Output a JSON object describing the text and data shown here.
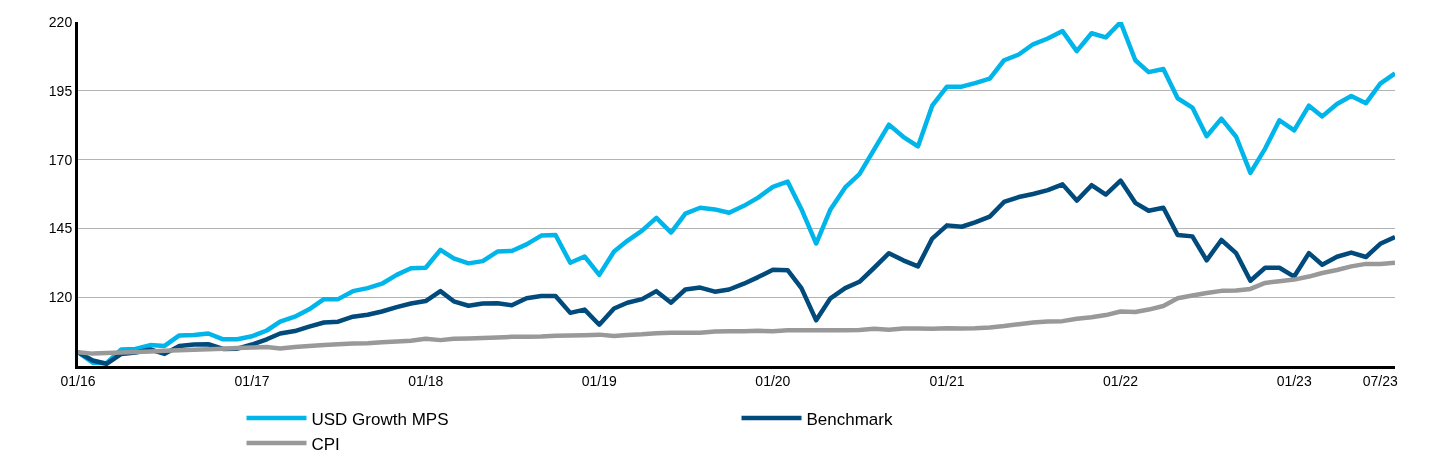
{
  "chart_data": {
    "type": "line",
    "x": [
      "2016-01",
      "2016-02",
      "2016-03",
      "2016-04",
      "2016-05",
      "2016-06",
      "2016-07",
      "2016-08",
      "2016-09",
      "2016-10",
      "2016-11",
      "2016-12",
      "2017-01",
      "2017-02",
      "2017-03",
      "2017-04",
      "2017-05",
      "2017-06",
      "2017-07",
      "2017-08",
      "2017-09",
      "2017-10",
      "2017-11",
      "2017-12",
      "2018-01",
      "2018-02",
      "2018-03",
      "2018-04",
      "2018-05",
      "2018-06",
      "2018-07",
      "2018-08",
      "2018-09",
      "2018-10",
      "2018-11",
      "2018-12",
      "2019-01",
      "2019-02",
      "2019-03",
      "2019-04",
      "2019-05",
      "2019-06",
      "2019-07",
      "2019-08",
      "2019-09",
      "2019-10",
      "2019-11",
      "2019-12",
      "2020-01",
      "2020-02",
      "2020-03",
      "2020-04",
      "2020-05",
      "2020-06",
      "2020-07",
      "2020-08",
      "2020-09",
      "2020-10",
      "2020-11",
      "2020-12",
      "2021-01",
      "2021-02",
      "2021-03",
      "2021-04",
      "2021-05",
      "2021-06",
      "2021-07",
      "2021-08",
      "2021-09",
      "2021-10",
      "2021-11",
      "2021-12",
      "2022-01",
      "2022-02",
      "2022-03",
      "2022-04",
      "2022-05",
      "2022-06",
      "2022-07",
      "2022-08",
      "2022-09",
      "2022-10",
      "2022-11",
      "2022-12",
      "2023-01",
      "2023-02",
      "2023-03",
      "2023-04",
      "2023-05",
      "2023-06",
      "2023-07",
      "2023-08"
    ],
    "series": [
      {
        "name": "USD Growth MPS",
        "color": "#00b5e9",
        "values": [
          100,
          96.2,
          96,
          101,
          101.2,
          102.6,
          102.3,
          106.1,
          106.3,
          106.8,
          104.7,
          104.7,
          105.8,
          107.9,
          111.1,
          112.9,
          115.6,
          119.3,
          119.3,
          122.2,
          123.3,
          124.9,
          128.1,
          130.5,
          130.7,
          137.2,
          134.1,
          132.3,
          133.1,
          136.6,
          136.8,
          139.2,
          142.4,
          142.6,
          132.5,
          134.8,
          128.1,
          136.6,
          140.5,
          144.2,
          148.8,
          143.5,
          150.4,
          152.5,
          151.9,
          150.7,
          153.2,
          156.2,
          160.1,
          162,
          152,
          139.5,
          151.9,
          159.9,
          164.7,
          173.7,
          182.7,
          178.3,
          174.8,
          189.6,
          196.5,
          196.5,
          197.8,
          199.4,
          206.1,
          208.2,
          211.9,
          214,
          216.7,
          209.4,
          215.9,
          214.4,
          219.9,
          206.1,
          201.8,
          202.9,
          192.3,
          188.9,
          178.5,
          184.9,
          178.3,
          165.2,
          174,
          184.3,
          180.6,
          189.6,
          185.7,
          190.2,
          193.1,
          190.5,
          197.6,
          201.3
        ]
      },
      {
        "name": "Benchmark",
        "color": "#004a7c",
        "values": [
          100,
          97,
          95.8,
          99.4,
          99.9,
          101,
          99.4,
          102.3,
          102.8,
          102.9,
          101.2,
          101.3,
          102.8,
          104.7,
          106.8,
          107.7,
          109.3,
          110.8,
          111.1,
          112.9,
          113.6,
          114.8,
          116.4,
          117.7,
          118.6,
          122.2,
          118.5,
          116.9,
          117.7,
          117.8,
          117.1,
          119.6,
          120.4,
          120.4,
          114.3,
          115.5,
          110,
          115.9,
          118,
          119.3,
          122.2,
          118,
          122.8,
          123.5,
          122,
          122.8,
          124.9,
          127.3,
          130,
          129.8,
          123.3,
          111.6,
          119.6,
          123.3,
          125.6,
          130.7,
          136,
          133.4,
          131.2,
          141.3,
          146.1,
          145.6,
          147.2,
          149.3,
          154.6,
          156.4,
          157.5,
          158.9,
          161,
          155.1,
          160.7,
          157.3,
          162.4,
          154.3,
          151.4,
          152.5,
          142.6,
          142.1,
          133.4,
          140.8,
          136,
          126,
          130.7,
          130.7,
          127.5,
          136,
          131.8,
          134.7,
          136.2,
          134.6,
          139.4,
          141.9
        ]
      },
      {
        "name": "CPI",
        "color": "#999999",
        "values": [
          100,
          99.5,
          99.7,
          99.9,
          100.1,
          100.3,
          100.5,
          100.7,
          100.9,
          101.1,
          101.3,
          101.5,
          101.7,
          101.9,
          101.4,
          101.9,
          102.3,
          102.6,
          102.9,
          103.2,
          103.3,
          103.6,
          103.9,
          104.2,
          104.9,
          104.4,
          104.9,
          105,
          105.2,
          105.4,
          105.6,
          105.6,
          105.7,
          106,
          106.1,
          106.2,
          106.4,
          105.9,
          106.3,
          106.5,
          106.9,
          107.1,
          107.1,
          107.1,
          107.5,
          107.6,
          107.6,
          107.8,
          107.6,
          108,
          108,
          108,
          108,
          108,
          108.1,
          108.5,
          108.2,
          108.6,
          108.6,
          108.5,
          108.7,
          108.6,
          108.7,
          109,
          109.5,
          110.2,
          110.8,
          111.2,
          111.3,
          112.2,
          112.7,
          113.5,
          114.8,
          114.6,
          115.5,
          116.8,
          119.6,
          120.6,
          121.5,
          122.3,
          122.4,
          123,
          125.2,
          125.8,
          126.4,
          127.5,
          128.8,
          129.9,
          131.2,
          132.1,
          132.1,
          132.5
        ]
      }
    ],
    "xlim": [
      "2016-01",
      "2023-08"
    ],
    "xticks": [
      {
        "value": "2016-01",
        "label": "01/16"
      },
      {
        "value": "2017-01",
        "label": "01/17"
      },
      {
        "value": "2018-01",
        "label": "01/18"
      },
      {
        "value": "2019-01",
        "label": "01/19"
      },
      {
        "value": "2020-01",
        "label": "01/20"
      },
      {
        "value": "2021-01",
        "label": "01/21"
      },
      {
        "value": "2022-01",
        "label": "01/22"
      },
      {
        "value": "2023-01",
        "label": "01/23"
      },
      {
        "value": "2023-07",
        "label": "07/23"
      }
    ],
    "ylim": [
      95,
      220
    ],
    "yticks": [
      120,
      145,
      170,
      195,
      220
    ],
    "grid": "y",
    "legend": "bottom",
    "line_style": "solid"
  }
}
